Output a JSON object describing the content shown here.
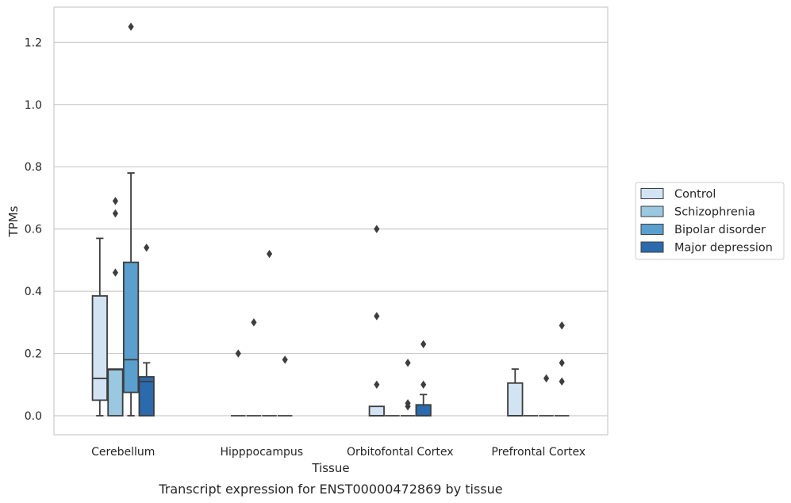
{
  "caption": "Transcript expression for ENST00000472869 by tissue",
  "chart_data": {
    "type": "box",
    "xlabel": "Tissue",
    "ylabel": "TPMs",
    "ylim": [
      -0.06,
      1.31
    ],
    "yticks": [
      0.0,
      0.2,
      0.4,
      0.6,
      0.8,
      1.0,
      1.2
    ],
    "ytick_labels": [
      "0.0",
      "0.2",
      "0.4",
      "0.6",
      "0.8",
      "1.0",
      "1.2"
    ],
    "grid": true,
    "legend_position": "right",
    "categories": [
      "Cerebellum",
      "Hipppocampus",
      "Orbitofontal Cortex",
      "Prefrontal Cortex"
    ],
    "series": [
      {
        "name": "Control",
        "color": "#d2e3f3",
        "boxes": [
          {
            "q1": 0.05,
            "median": 0.12,
            "q3": 0.385,
            "whisker_low": 0.0,
            "whisker_high": 0.57,
            "outliers": []
          },
          {
            "q1": 0.0,
            "median": 0.0,
            "q3": 0.0,
            "whisker_low": 0.0,
            "whisker_high": 0.0,
            "outliers": [
              0.2
            ]
          },
          {
            "q1": 0.0,
            "median": 0.0,
            "q3": 0.03,
            "whisker_low": 0.0,
            "whisker_high": 0.03,
            "outliers": [
              0.1,
              0.32,
              0.6
            ]
          },
          {
            "q1": 0.0,
            "median": 0.0,
            "q3": 0.105,
            "whisker_low": 0.0,
            "whisker_high": 0.15,
            "outliers": []
          }
        ]
      },
      {
        "name": "Schizophrenia",
        "color": "#9ac8e0",
        "boxes": [
          {
            "q1": 0.0,
            "median": 0.148,
            "q3": 0.15,
            "whisker_low": 0.0,
            "whisker_high": 0.15,
            "outliers": [
              0.46,
              0.65,
              0.69
            ]
          },
          {
            "q1": 0.0,
            "median": 0.0,
            "q3": 0.0,
            "whisker_low": 0.0,
            "whisker_high": 0.0,
            "outliers": [
              0.3
            ]
          },
          {
            "q1": 0.0,
            "median": 0.0,
            "q3": 0.0,
            "whisker_low": 0.0,
            "whisker_high": 0.0,
            "outliers": []
          },
          {
            "q1": 0.0,
            "median": 0.0,
            "q3": 0.0,
            "whisker_low": 0.0,
            "whisker_high": 0.0,
            "outliers": []
          }
        ]
      },
      {
        "name": "Bipolar disorder",
        "color": "#5a9fce",
        "boxes": [
          {
            "q1": 0.075,
            "median": 0.18,
            "q3": 0.493,
            "whisker_low": 0.0,
            "whisker_high": 0.78,
            "outliers": [
              1.25
            ]
          },
          {
            "q1": 0.0,
            "median": 0.0,
            "q3": 0.0,
            "whisker_low": 0.0,
            "whisker_high": 0.0,
            "outliers": [
              0.52
            ]
          },
          {
            "q1": 0.0,
            "median": 0.0,
            "q3": 0.0,
            "whisker_low": 0.0,
            "whisker_high": 0.0,
            "outliers": [
              0.03,
              0.04,
              0.17
            ]
          },
          {
            "q1": 0.0,
            "median": 0.0,
            "q3": 0.0,
            "whisker_low": 0.0,
            "whisker_high": 0.0,
            "outliers": [
              0.12
            ]
          }
        ]
      },
      {
        "name": "Major depression",
        "color": "#2a6aad",
        "boxes": [
          {
            "q1": 0.0,
            "median": 0.11,
            "q3": 0.125,
            "whisker_low": 0.0,
            "whisker_high": 0.17,
            "outliers": [
              0.54
            ]
          },
          {
            "q1": 0.0,
            "median": 0.0,
            "q3": 0.0,
            "whisker_low": 0.0,
            "whisker_high": 0.0,
            "outliers": [
              0.18
            ]
          },
          {
            "q1": 0.0,
            "median": 0.0,
            "q3": 0.035,
            "whisker_low": 0.0,
            "whisker_high": 0.068,
            "outliers": [
              0.1,
              0.23
            ]
          },
          {
            "q1": 0.0,
            "median": 0.0,
            "q3": 0.0,
            "whisker_low": 0.0,
            "whisker_high": 0.0,
            "outliers": [
              0.11,
              0.17,
              0.29
            ]
          }
        ]
      }
    ]
  }
}
